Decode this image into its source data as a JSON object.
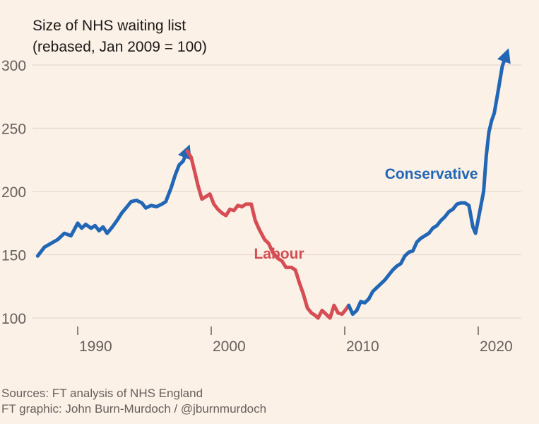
{
  "title": "Size of NHS waiting list",
  "subtitle": "(rebased, Jan 2009 = 100)",
  "footer": {
    "sources": "Sources: FT analysis of NHS England",
    "credit": "FT graphic: John Burn-Murdoch / @jburnmurdoch"
  },
  "colors": {
    "background": "#fcf1e7",
    "conservative": "#2167b5",
    "labour": "#d64d54",
    "grid": "#e6d9ce",
    "text": "#66605c"
  },
  "chart_data": {
    "type": "line",
    "title": "Size of NHS waiting list",
    "subtitle": "(rebased, Jan 2009 = 100)",
    "xlabel": "",
    "ylabel": "",
    "xlim": [
      1987,
      2023
    ],
    "ylim": [
      100,
      300
    ],
    "y_ticks": [
      100,
      150,
      200,
      250,
      300
    ],
    "x_ticks": [
      1990,
      2000,
      2010,
      2020
    ],
    "y_tick_labels": [
      "100",
      "150",
      "200",
      "250",
      "300"
    ],
    "x_tick_labels": [
      "1990",
      "2000",
      "2010",
      "2020"
    ],
    "grid": "horizontal",
    "series": [
      {
        "name": "Conservative",
        "color": "#2167b5",
        "x": [
          1987.0,
          1987.5,
          1988.0,
          1988.5,
          1989.0,
          1989.5,
          1990.0,
          1990.3,
          1990.6,
          1991.0,
          1991.3,
          1991.6,
          1991.9,
          1992.2,
          1992.6,
          1993.0,
          1993.3,
          1993.7,
          1994.0,
          1994.4,
          1994.8,
          1995.1,
          1995.5,
          1995.9,
          1996.3,
          1996.6,
          1997.0,
          1997.3,
          1997.6,
          1997.9,
          1998.2
        ],
        "y": [
          149,
          156,
          159,
          162,
          167,
          165,
          175,
          171,
          174,
          171,
          173,
          169,
          172,
          167,
          172,
          178,
          183,
          188,
          192,
          193,
          191,
          187,
          189,
          188,
          190,
          192,
          203,
          213,
          221,
          224,
          232
        ]
      },
      {
        "name": "Labour",
        "color": "#d64d54",
        "x": [
          1998.2,
          1998.5,
          1998.8,
          1999.0,
          1999.3,
          1999.6,
          1999.9,
          2000.2,
          2000.5,
          2000.8,
          2001.1,
          2001.4,
          2001.7,
          2002.0,
          2002.3,
          2002.6,
          2003.0,
          2003.3,
          2003.6,
          2004.0,
          2004.3,
          2004.6,
          2005.0,
          2005.3,
          2005.6,
          2006.0,
          2006.3,
          2006.6,
          2006.9,
          2007.2,
          2007.5,
          2007.8,
          2008.0,
          2008.3,
          2008.6,
          2008.9,
          2009.2,
          2009.5,
          2009.8,
          2010.1,
          2010.3
        ],
        "y": [
          232,
          227,
          214,
          205,
          194,
          196,
          198,
          190,
          186,
          183,
          181,
          186,
          185,
          189,
          188,
          190,
          190,
          177,
          170,
          162,
          159,
          152,
          147,
          145,
          140,
          140,
          138,
          128,
          119,
          108,
          104,
          102,
          100,
          106,
          103,
          100,
          110,
          104,
          103,
          107,
          110
        ]
      },
      {
        "name": "Conservative",
        "color": "#2167b5",
        "x": [
          2010.3,
          2010.6,
          2010.9,
          2011.2,
          2011.5,
          2011.8,
          2012.1,
          2012.4,
          2012.7,
          2013.0,
          2013.3,
          2013.6,
          2013.9,
          2014.2,
          2014.5,
          2014.8,
          2015.1,
          2015.4,
          2015.7,
          2016.0,
          2016.3,
          2016.6,
          2016.9,
          2017.2,
          2017.5,
          2017.8,
          2018.1,
          2018.4,
          2018.7,
          2019.0,
          2019.3,
          2019.6,
          2019.8,
          2020.0,
          2020.2,
          2020.4,
          2020.6,
          2020.8,
          2021.0,
          2021.2,
          2021.5,
          2021.8,
          2022.1
        ],
        "y": [
          110,
          103,
          106,
          113,
          112,
          115,
          121,
          124,
          127,
          130,
          134,
          138,
          141,
          143,
          149,
          152,
          153,
          160,
          163,
          165,
          167,
          171,
          173,
          177,
          180,
          184,
          186,
          190,
          191,
          191,
          189,
          172,
          167,
          178,
          189,
          200,
          228,
          247,
          256,
          262,
          280,
          299,
          308
        ]
      }
    ],
    "annotations": [
      {
        "text": "Conservative",
        "color": "#2167b5",
        "x": 2013.0,
        "y": 210
      },
      {
        "text": "Labour",
        "color": "#d64d54",
        "x": 2003.2,
        "y": 147
      }
    ]
  }
}
